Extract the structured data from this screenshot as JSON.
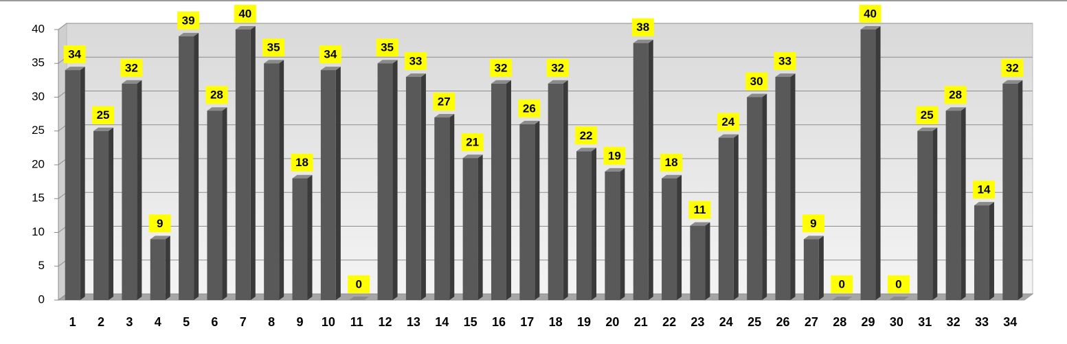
{
  "chart_data": {
    "type": "bar3d",
    "categories": [
      "1",
      "2",
      "3",
      "4",
      "5",
      "6",
      "7",
      "8",
      "9",
      "10",
      "11",
      "12",
      "13",
      "14",
      "15",
      "16",
      "17",
      "18",
      "19",
      "20",
      "21",
      "22",
      "23",
      "24",
      "25",
      "26",
      "27",
      "28",
      "29",
      "30",
      "31",
      "32",
      "33",
      "34"
    ],
    "values": [
      34,
      25,
      32,
      9,
      39,
      28,
      40,
      35,
      18,
      34,
      0,
      35,
      33,
      27,
      21,
      32,
      26,
      32,
      22,
      19,
      38,
      18,
      11,
      24,
      30,
      33,
      9,
      0,
      40,
      0,
      25,
      28,
      14,
      32
    ],
    "color": "#595959",
    "label_color": "#ffff00",
    "ylim": [
      0,
      40
    ],
    "yticks": [
      0,
      5,
      10,
      15,
      20,
      25,
      30,
      35,
      40
    ],
    "grid": true
  }
}
